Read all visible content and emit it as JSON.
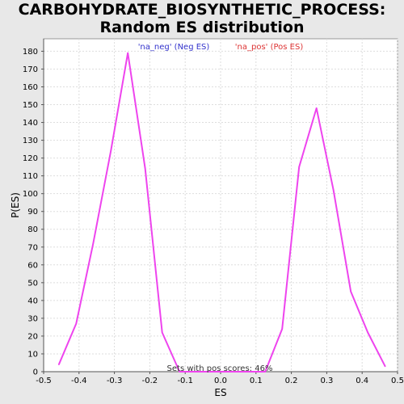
{
  "chart_data": {
    "type": "line",
    "title": "CARBOHYDRATE_BIOSYNTHETIC_PROCESS: Random ES distribution",
    "xlabel": "ES",
    "ylabel": "P(ES)",
    "xlim": [
      -0.5,
      0.5
    ],
    "ylim": [
      0,
      187
    ],
    "x_ticks": [
      "-0.5",
      "-0.4",
      "-0.3",
      "-0.2",
      "-0.1",
      "0.0",
      "0.1",
      "0.2",
      "0.3",
      "0.4",
      "0.5"
    ],
    "x_tick_values": [
      -0.5,
      -0.4,
      -0.3,
      -0.2,
      -0.1,
      0.0,
      0.1,
      0.2,
      0.3,
      0.4,
      0.5
    ],
    "y_ticks": [
      "0",
      "10",
      "20",
      "30",
      "40",
      "50",
      "60",
      "70",
      "80",
      "90",
      "100",
      "110",
      "120",
      "130",
      "140",
      "150",
      "160",
      "170",
      "180"
    ],
    "y_tick_values": [
      0,
      10,
      20,
      30,
      40,
      50,
      60,
      70,
      80,
      90,
      100,
      110,
      120,
      130,
      140,
      150,
      160,
      170,
      180
    ],
    "grid": true,
    "legend": [
      {
        "label": "'na_neg' (Neg ES)",
        "color": "#3333cc"
      },
      {
        "label": "'na_pos' (Pos ES)",
        "color": "#dd3333"
      }
    ],
    "series": [
      {
        "color": "#ee44ee",
        "x": [
          -0.457,
          -0.408,
          -0.36,
          -0.31,
          -0.262,
          -0.213,
          -0.165,
          -0.116,
          -0.068,
          -0.019,
          0.029,
          0.077,
          0.126,
          0.174,
          0.222,
          0.271,
          0.319,
          0.368,
          0.416,
          0.465
        ],
        "y": [
          4,
          27,
          72,
          124,
          179,
          114,
          22,
          0,
          0,
          0,
          0,
          0,
          0,
          24,
          115,
          148,
          102,
          45,
          22,
          3
        ]
      }
    ],
    "annotation": "Sets with pos scores: 46%"
  }
}
